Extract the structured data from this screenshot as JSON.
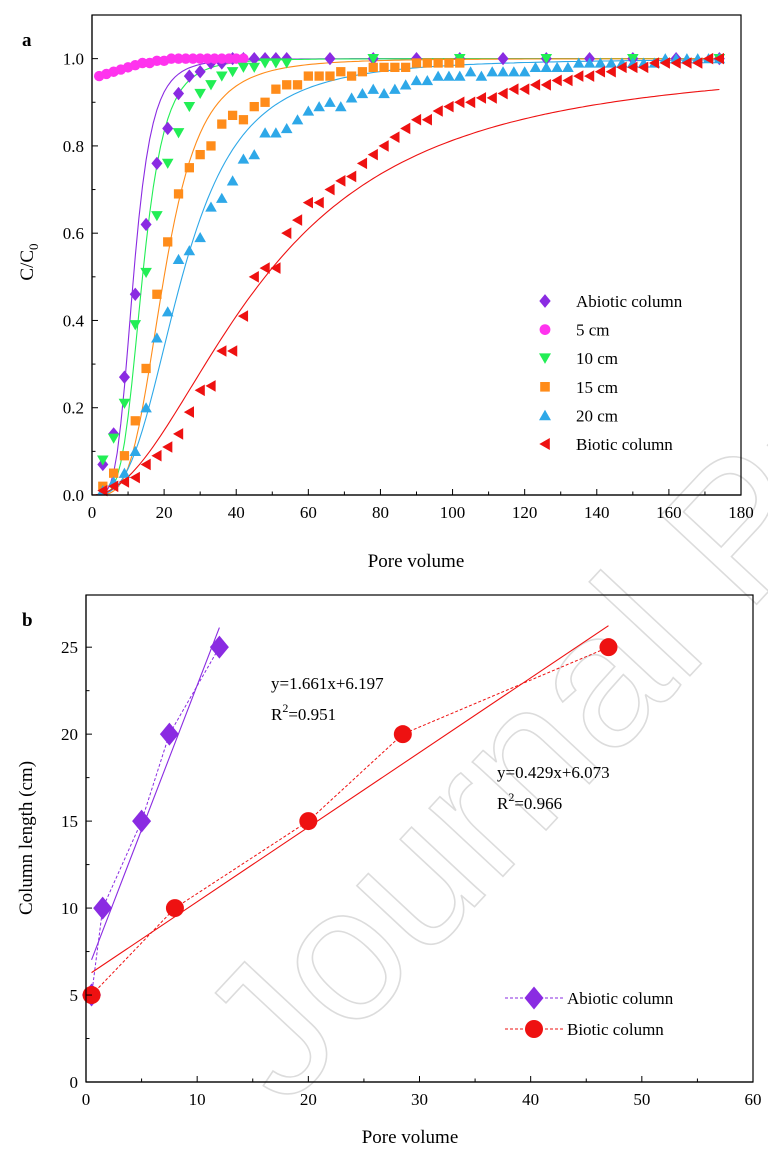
{
  "watermark": "Journal Pre-proof",
  "chart_data": [
    {
      "panel": "a",
      "type": "scatter",
      "xlabel": "Pore volume",
      "ylabel": "C/C0",
      "xlim": [
        0,
        180
      ],
      "ylim": [
        0,
        1.1
      ],
      "xticks": [
        0,
        20,
        40,
        60,
        80,
        100,
        120,
        140,
        160,
        180
      ],
      "yticks": [
        "0.0",
        "0.2",
        "0.4",
        "0.6",
        "0.8",
        "1.0"
      ],
      "grid": false,
      "legend": "bottom-right",
      "series": [
        {
          "name": "Abiotic column",
          "marker": "diamond",
          "color": "#8a2be2",
          "x": [
            3,
            6,
            9,
            12,
            15,
            18,
            21,
            24,
            27,
            30,
            33,
            36,
            39,
            42,
            45,
            48,
            51,
            54,
            66,
            78,
            90,
            102,
            114,
            126,
            138,
            150,
            162,
            174
          ],
          "y": [
            0.07,
            0.14,
            0.27,
            0.46,
            0.62,
            0.76,
            0.84,
            0.92,
            0.96,
            0.97,
            0.99,
            0.99,
            1.0,
            1.0,
            1.0,
            1.0,
            1.0,
            1.0,
            1.0,
            1.0,
            1.0,
            1.0,
            1.0,
            1.0,
            1.0,
            1.0,
            1.0,
            1.0
          ],
          "fit_k": 90,
          "fit_x0": 11.5
        },
        {
          "name": "5 cm",
          "marker": "circle",
          "color": "#ff33ee",
          "x": [
            2,
            4,
            6,
            8,
            10,
            12,
            14,
            16,
            18,
            20,
            22,
            24,
            26,
            28,
            30,
            32,
            34,
            36,
            38,
            40,
            42
          ],
          "y": [
            0.96,
            0.965,
            0.97,
            0.975,
            0.98,
            0.985,
            0.99,
            0.99,
            0.995,
            0.995,
            1.0,
            1.0,
            1.0,
            1.0,
            1.0,
            1.0,
            1.0,
            1.0,
            1.0,
            1.0,
            1.0
          ]
        },
        {
          "name": "10 cm",
          "marker": "triangle-down",
          "color": "#22ee55",
          "x": [
            3,
            6,
            9,
            12,
            15,
            18,
            21,
            24,
            27,
            30,
            33,
            36,
            39,
            42,
            45,
            48,
            51,
            54,
            78,
            102,
            126,
            150,
            174
          ],
          "y": [
            0.08,
            0.13,
            0.21,
            0.39,
            0.51,
            0.64,
            0.76,
            0.83,
            0.89,
            0.92,
            0.94,
            0.96,
            0.97,
            0.98,
            0.98,
            0.99,
            0.99,
            0.99,
            1.0,
            1.0,
            1.0,
            1.0,
            1.0
          ],
          "fit_k": 90,
          "fit_x0": 14
        },
        {
          "name": "15 cm",
          "marker": "square",
          "color": "#ff8c1a",
          "x": [
            3,
            6,
            9,
            12,
            15,
            18,
            21,
            24,
            27,
            30,
            33,
            36,
            39,
            42,
            45,
            48,
            51,
            54,
            57,
            60,
            63,
            66,
            69,
            72,
            75,
            78,
            81,
            84,
            87,
            90,
            93,
            96,
            99,
            102
          ],
          "y": [
            0.02,
            0.05,
            0.09,
            0.17,
            0.29,
            0.46,
            0.58,
            0.69,
            0.75,
            0.78,
            0.8,
            0.85,
            0.87,
            0.86,
            0.89,
            0.9,
            0.93,
            0.94,
            0.94,
            0.96,
            0.96,
            0.96,
            0.97,
            0.96,
            0.97,
            0.98,
            0.98,
            0.98,
            0.98,
            0.99,
            0.99,
            0.99,
            0.99,
            0.99
          ],
          "fit_k": 78,
          "fit_x0": 20
        },
        {
          "name": "20 cm",
          "marker": "triangle-up",
          "color": "#2ea8e8",
          "x": [
            3,
            6,
            9,
            12,
            15,
            18,
            21,
            24,
            27,
            30,
            33,
            36,
            39,
            42,
            45,
            48,
            51,
            54,
            57,
            60,
            63,
            66,
            69,
            72,
            75,
            78,
            81,
            84,
            87,
            90,
            93,
            96,
            99,
            102,
            105,
            108,
            111,
            114,
            117,
            120,
            123,
            126,
            129,
            132,
            135,
            138,
            141,
            144,
            147,
            150,
            153,
            156,
            159,
            162,
            165,
            168,
            171,
            174
          ],
          "y": [
            0.01,
            0.03,
            0.05,
            0.1,
            0.2,
            0.36,
            0.42,
            0.54,
            0.56,
            0.59,
            0.66,
            0.68,
            0.72,
            0.77,
            0.78,
            0.83,
            0.83,
            0.84,
            0.86,
            0.88,
            0.89,
            0.9,
            0.89,
            0.91,
            0.92,
            0.93,
            0.92,
            0.93,
            0.94,
            0.95,
            0.95,
            0.96,
            0.96,
            0.96,
            0.97,
            0.96,
            0.97,
            0.97,
            0.97,
            0.97,
            0.98,
            0.98,
            0.98,
            0.98,
            0.99,
            0.99,
            0.99,
            0.99,
            0.99,
            0.99,
            0.99,
            0.99,
            1.0,
            1.0,
            1.0,
            1.0,
            1.0,
            1.0
          ],
          "fit_k": 60,
          "fit_x0": 25
        },
        {
          "name": "Biotic column",
          "marker": "triangle-left",
          "color": "#ee1111",
          "x": [
            3,
            6,
            9,
            12,
            15,
            18,
            21,
            24,
            27,
            30,
            33,
            36,
            39,
            42,
            45,
            48,
            51,
            54,
            57,
            60,
            63,
            66,
            69,
            72,
            75,
            78,
            81,
            84,
            87,
            90,
            93,
            96,
            99,
            102,
            105,
            108,
            111,
            114,
            117,
            120,
            123,
            126,
            129,
            132,
            135,
            138,
            141,
            144,
            147,
            150,
            153,
            156,
            159,
            162,
            165,
            168,
            171,
            174
          ],
          "y": [
            0.01,
            0.02,
            0.03,
            0.04,
            0.07,
            0.09,
            0.11,
            0.14,
            0.19,
            0.24,
            0.25,
            0.33,
            0.33,
            0.41,
            0.5,
            0.52,
            0.52,
            0.6,
            0.63,
            0.67,
            0.67,
            0.7,
            0.72,
            0.73,
            0.76,
            0.78,
            0.8,
            0.82,
            0.84,
            0.86,
            0.86,
            0.88,
            0.89,
            0.9,
            0.9,
            0.91,
            0.91,
            0.92,
            0.93,
            0.93,
            0.94,
            0.94,
            0.95,
            0.95,
            0.96,
            0.96,
            0.97,
            0.97,
            0.98,
            0.98,
            0.98,
            0.99,
            0.99,
            0.99,
            0.99,
            0.99,
            1.0,
            1.0
          ],
          "fit_k": 40,
          "fit_x0": 48
        }
      ]
    },
    {
      "panel": "b",
      "type": "scatter",
      "xlabel": "Pore volume",
      "ylabel": "Column length (cm)",
      "xlim": [
        0,
        60
      ],
      "ylim": [
        0,
        28
      ],
      "xticks": [
        0,
        10,
        20,
        30,
        40,
        50,
        60
      ],
      "yticks": [
        0,
        5,
        10,
        15,
        20,
        25
      ],
      "grid": false,
      "legend": "bottom-right",
      "series": [
        {
          "name": "Abiotic column",
          "marker": "diamond",
          "color": "#8a2be2",
          "x": [
            0.5,
            1.5,
            5,
            7.5,
            12
          ],
          "y": [
            5,
            10,
            15,
            20,
            25
          ],
          "fit": {
            "slope": 1.661,
            "intercept": 6.197,
            "x_range": [
              0.5,
              12
            ]
          },
          "equation": "y=1.661x+6.197",
          "r2": "=0.951"
        },
        {
          "name": "Biotic column",
          "marker": "circle",
          "color": "#ee1111",
          "x": [
            0.5,
            8,
            20,
            28.5,
            47
          ],
          "y": [
            5,
            10,
            15,
            20,
            25
          ],
          "fit": {
            "slope": 0.429,
            "intercept": 6.073,
            "x_range": [
              0.5,
              47
            ]
          },
          "equation": "y=0.429x+6.073",
          "r2": "=0.966"
        }
      ]
    }
  ]
}
